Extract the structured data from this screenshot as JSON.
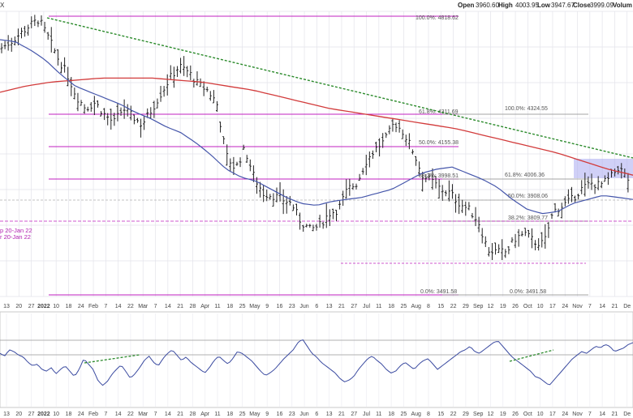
{
  "header": {
    "symbol": "X",
    "open_label": "Open",
    "open": "3960.60",
    "high_label": "High",
    "high": "4003.95",
    "low_label": "Low",
    "low": "3947.67",
    "close_label": "Close",
    "close": "3999.09",
    "volume_label": "Volum"
  },
  "chart_data": [
    {
      "type": "ohlc",
      "panel": "price",
      "ylim": [
        3420,
        4830
      ],
      "x_labels": [
        "13",
        "20",
        "27",
        "2022",
        "10",
        "18",
        "24",
        "Feb",
        "7",
        "14",
        "22",
        "Mar",
        "7",
        "14",
        "21",
        "28",
        "Apr",
        "11",
        "18",
        "25",
        "May",
        "9",
        "16",
        "23",
        "Jun",
        "6",
        "13",
        "21",
        "27",
        "Jul",
        "11",
        "18",
        "25",
        "Aug",
        "8",
        "15",
        "22",
        "29",
        "Sep",
        "12",
        "19",
        "26",
        "Oct",
        "10",
        "17",
        "24",
        "Nov",
        "7",
        "14",
        "21",
        "De"
      ],
      "bold_labels": [
        "2022"
      ],
      "series": [
        {
          "name": "price",
          "values": [
            4650,
            4680,
            4720,
            4760,
            4790,
            4700,
            4600,
            4520,
            4410,
            4350,
            4380,
            4320,
            4280,
            4350,
            4310,
            4270,
            4340,
            4420,
            4500,
            4560,
            4530,
            4470,
            4440,
            4380,
            4120,
            4050,
            4150,
            4010,
            3930,
            3920,
            3900,
            3880,
            3790,
            3750,
            3770,
            3830,
            3850,
            3950,
            3980,
            4090,
            4150,
            4190,
            4280,
            4230,
            4140,
            4020,
            3990,
            3950,
            3930,
            3880,
            3850,
            3790,
            3650,
            3640,
            3640,
            3710,
            3730,
            3690,
            3680,
            3840,
            3870,
            3900,
            3950,
            3980,
            3970,
            4000,
            4060,
            4000
          ]
        },
        {
          "name": "ma50",
          "values": [
            4690,
            4680,
            4640,
            4590,
            4520,
            4460,
            4430,
            4400,
            4370,
            4330,
            4300,
            4260,
            4230,
            4180,
            4120,
            4050,
            4010,
            3990,
            3950,
            3910,
            3880,
            3870,
            3890,
            3900,
            3910,
            3930,
            3950,
            3990,
            4030,
            4050,
            4060,
            4030,
            4000,
            3960,
            3900,
            3850,
            3830,
            3840,
            3880,
            3900,
            3920,
            3910,
            3900
          ]
        },
        {
          "name": "ma200",
          "values": [
            4430,
            4460,
            4480,
            4490,
            4500,
            4500,
            4500,
            4490,
            4480,
            4460,
            4440,
            4410,
            4380,
            4350,
            4330,
            4310,
            4290,
            4270,
            4250,
            4220,
            4190,
            4160,
            4130,
            4090,
            4050,
            4020
          ]
        }
      ],
      "trendline": {
        "from": [
          "6 Jan 22",
          4818
        ],
        "to": [
          "1 Dec 22",
          4080
        ]
      },
      "fib_sets": [
        {
          "levels": [
            {
              "label": "100.0%: 4818.62",
              "value": 4818.62
            },
            {
              "label": "61.8%: 4311.69",
              "value": 4311.69
            },
            {
              "label": "50.0%: 4155.38",
              "value": 4155.38
            },
            {
              "label": "38.2%: 3998.51",
              "value": 3998.51
            },
            {
              "label": "0.0%: 3491.58",
              "value": 3491.58
            }
          ]
        },
        {
          "levels": [
            {
              "label": "100.0%: 4324.55",
              "value": 4324.55
            },
            {
              "label": "61.8%: 4006.36",
              "value": 4006.36
            },
            {
              "label": "50.0%: 3908.06",
              "value": 3908.06
            },
            {
              "label": "38.2%: 3809.77",
              "value": 3809.77
            },
            {
              "label": "0.0%: 3491.58",
              "value": 3491.58
            }
          ]
        }
      ],
      "annotations": [
        {
          "text": "p 20-Jan 22",
          "color": "#b222b2"
        },
        {
          "text": "r 20-Jan 22",
          "color": "#b222b2"
        }
      ],
      "highlight_zone": {
        "value_range": [
          3960,
          4065
        ],
        "color": "#a9a9f0"
      },
      "colors": {
        "bars": "#222222",
        "ma50": "#4455aa",
        "ma200": "#d23b3b",
        "fib": "#c020c0",
        "trend": "#2a8a2a",
        "grid": "#d8d8e0"
      }
    },
    {
      "type": "line",
      "panel": "rsi",
      "ylim": [
        0,
        100
      ],
      "levels": [
        30,
        70
      ],
      "x_labels": [
        "13",
        "20",
        "27",
        "2022",
        "10",
        "18",
        "24",
        "Feb",
        "7",
        "14",
        "22",
        "Mar",
        "7",
        "14",
        "21",
        "28",
        "Apr",
        "11",
        "18",
        "25",
        "May",
        "9",
        "16",
        "23",
        "Jun",
        "6",
        "13",
        "21",
        "27",
        "Jul",
        "11",
        "18",
        "25",
        "Aug",
        "8",
        "15",
        "22",
        "29",
        "Sep",
        "12",
        "19",
        "26",
        "Oct",
        "10",
        "17",
        "24",
        "Nov",
        "7",
        "14",
        "21",
        "De"
      ],
      "series": [
        {
          "name": "RSI",
          "values": [
            58,
            55,
            62,
            60,
            56,
            54,
            48,
            44,
            46,
            40,
            38,
            42,
            35,
            40,
            44,
            38,
            32,
            40,
            52,
            46,
            40,
            28,
            22,
            26,
            34,
            40,
            45,
            38,
            30,
            35,
            42,
            50,
            55,
            48,
            44,
            52,
            58,
            62,
            56,
            50,
            54,
            48,
            44,
            40,
            36,
            42,
            50,
            55,
            50,
            46,
            52,
            60,
            58,
            54,
            50,
            44,
            38,
            33,
            36,
            40,
            46,
            52,
            57,
            62,
            70,
            74,
            66,
            58,
            54,
            48,
            44,
            40,
            36,
            30,
            26,
            28,
            32,
            40,
            46,
            52,
            55,
            50,
            46,
            40,
            36,
            38,
            44,
            48,
            44,
            40,
            46,
            50,
            52,
            46,
            40,
            44,
            48,
            52,
            56,
            60,
            62,
            66,
            60,
            58,
            62,
            66,
            70,
            72,
            66,
            60,
            54,
            50,
            46,
            42,
            38,
            32,
            30,
            26,
            22,
            28,
            34,
            40,
            46,
            52,
            56,
            60,
            58,
            62,
            66,
            64,
            68,
            66,
            60,
            62,
            64,
            68,
            70
          ]
        }
      ],
      "divergence_lines": [
        {
          "from_value": 22,
          "to_value": 28
        },
        {
          "from_value": 22,
          "to_value": 33
        }
      ],
      "colors": {
        "line": "#3a4aa0",
        "levels": "#999999",
        "fill_low": "#5aa09a",
        "divergence": "#2a8a2a"
      }
    }
  ]
}
